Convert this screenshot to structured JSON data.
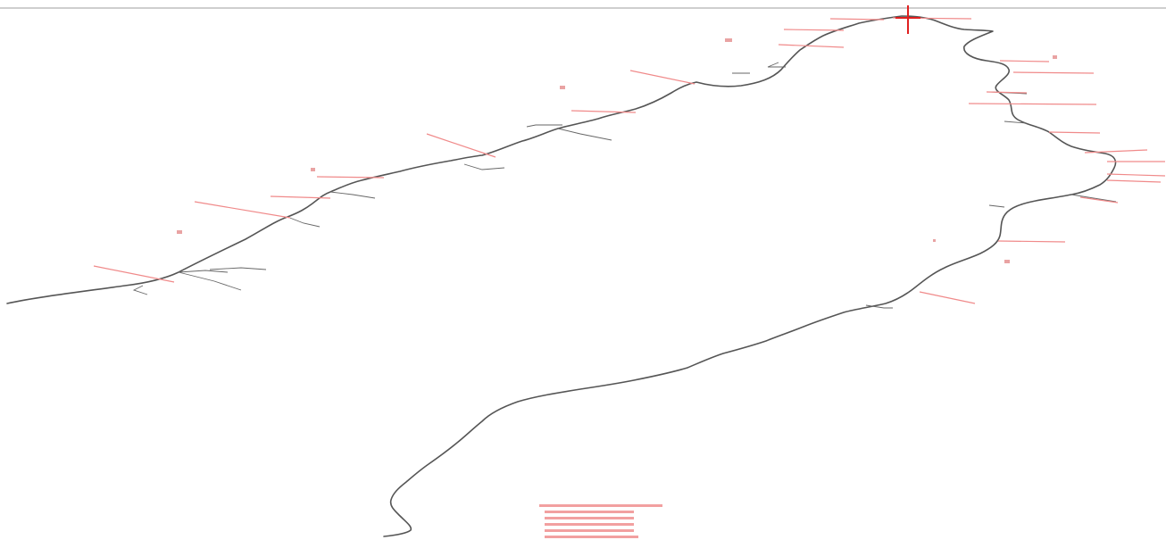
{
  "map": {
    "description_visible_text": "",
    "colors": {
      "background": "#ffffff",
      "route_line": "#555555",
      "annotation": "#f08a8a",
      "marker": "#e02020"
    },
    "icons": [
      "crosshair-marker-icon"
    ]
  },
  "legend": {
    "lines": [
      "",
      "",
      "",
      "",
      "",
      ""
    ]
  }
}
